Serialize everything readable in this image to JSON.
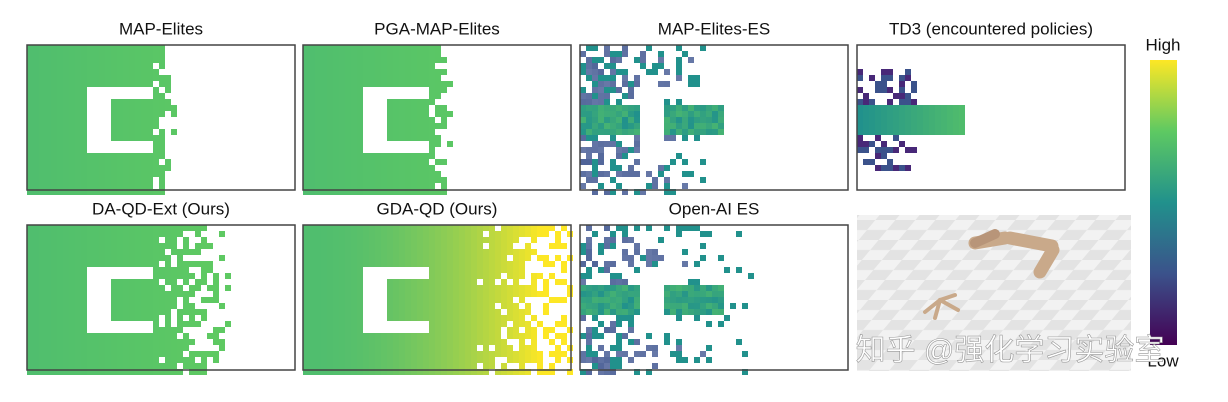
{
  "panels": [
    {
      "title": "MAP-Elites"
    },
    {
      "title": "PGA-MAP-Elites"
    },
    {
      "title": "MAP-Elites-ES"
    },
    {
      "title": "TD3 (encountered policies)"
    },
    {
      "title": "DA-QD-Ext (Ours)"
    },
    {
      "title": "GDA-QD (Ours)"
    },
    {
      "title": "Open-AI ES"
    }
  ],
  "colorbar": {
    "high": "High",
    "low": "Low"
  },
  "watermark": "知乎 @强化学习实验室"
}
